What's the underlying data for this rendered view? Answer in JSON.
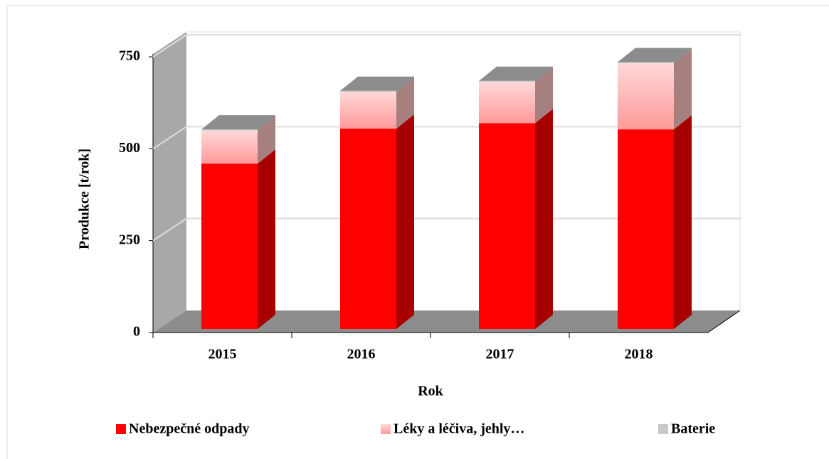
{
  "chart_data": {
    "type": "bar",
    "stacked": true,
    "categories": [
      "2015",
      "2016",
      "2017",
      "2018"
    ],
    "series": [
      {
        "name": "Nebezpečné odpady",
        "color": "#ff0000",
        "values": [
          450,
          545,
          560,
          543
        ]
      },
      {
        "name": "Léky a léčiva, jehly…",
        "color": "#ffc4c4",
        "values": [
          90,
          100,
          112,
          180
        ]
      },
      {
        "name": "Baterie",
        "color": "#c8c8c8",
        "values": [
          3,
          3,
          3,
          3
        ]
      }
    ],
    "ylim": [
      0,
      750
    ],
    "yticks": [
      0,
      250,
      500,
      750
    ],
    "grid": true,
    "y_label": "Produkce  [t/rok]",
    "x_label": "Rok"
  }
}
